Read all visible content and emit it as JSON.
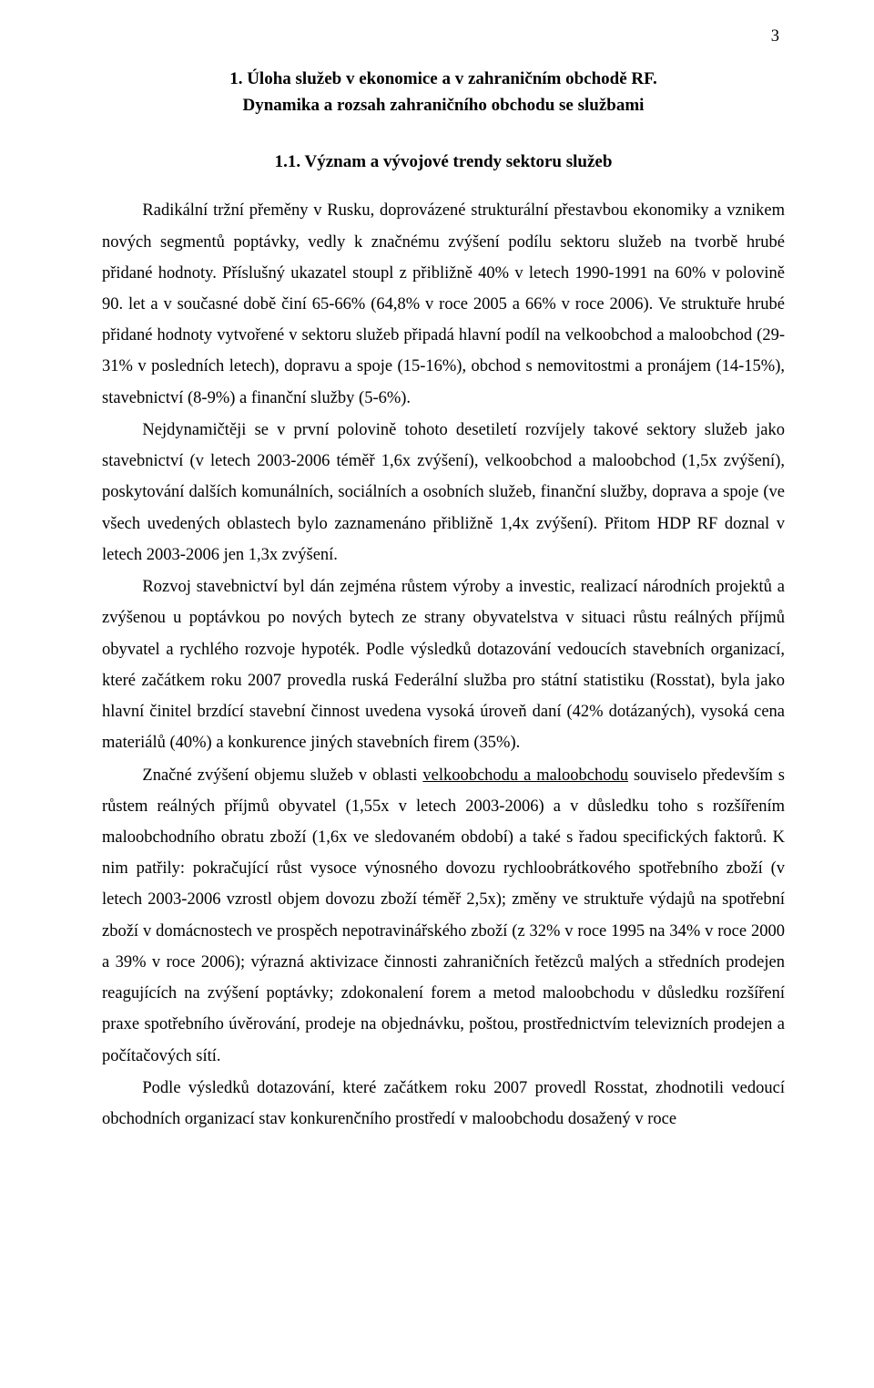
{
  "pageNumber": "3",
  "heading1_line1": "1. Úloha služeb v ekonomice a v zahraničním obchodě RF.",
  "heading1_line2": "Dynamika a rozsah zahraničního obchodu se službami",
  "heading2": "1.1. Význam a vývojové trendy sektoru služeb",
  "p1": "Radikální tržní přeměny v Rusku, doprovázené strukturální přestavbou ekonomiky a vznikem nových segmentů poptávky, vedly k značnému zvýšení podílu sektoru služeb na tvorbě hrubé přidané hodnoty. Příslušný ukazatel stoupl z přibližně 40% v letech 1990-1991 na 60% v polovině 90. let a v současné době činí 65-66% (64,8% v roce 2005 a 66% v roce 2006). Ve struktuře hrubé přidané hodnoty vytvořené v sektoru služeb připadá hlavní podíl na velkoobchod a maloobchod (29-31% v posledních letech), dopravu a spoje (15-16%), obchod s nemovitostmi a pronájem (14-15%), stavebnictví (8-9%) a finanční služby (5-6%).",
  "p2": "Nejdynamičtěji se v první polovině tohoto desetiletí rozvíjely takové sektory služeb jako stavebnictví (v letech 2003-2006 téměř 1,6x zvýšení), velkoobchod a maloobchod (1,5x zvýšení), poskytování dalších komunálních, sociálních a osobních služeb, finanční služby, doprava a spoje (ve všech uvedených oblastech bylo zaznamenáno přibližně 1,4x zvýšení). Přitom HDP RF doznal v letech 2003-2006 jen 1,3x zvýšení.",
  "p3": "Rozvoj stavebnictví byl dán zejména růstem výroby a investic, realizací národních projektů a zvýšenou u poptávkou po nových bytech ze strany obyvatelstva v situaci růstu reálných příjmů obyvatel a rychlého rozvoje hypoték. Podle výsledků dotazování vedoucích stavebních organizací, které začátkem roku 2007 provedla ruská Federální služba pro státní statistiku (Rosstat), byla jako hlavní činitel brzdící stavební činnost uvedena vysoká úroveň daní (42% dotázaných), vysoká cena materiálů (40%) a konkurence jiných stavebních firem (35%).",
  "p4_a": "Značné zvýšení objemu služeb v oblasti ",
  "p4_u": "velkoobchodu a maloobchodu",
  "p4_b": " souviselo především s růstem reálných příjmů obyvatel (1,55x v letech 2003-2006) a v důsledku toho s rozšířením maloobchodního obratu zboží (1,6x ve sledovaném období) a také s řadou specifických faktorů. K nim patřily: pokračující růst vysoce výnosného dovozu rychloobrátkového spotřebního zboží (v letech 2003-2006 vzrostl objem dovozu zboží téměř 2,5x); změny ve struktuře výdajů na spotřební zboží v domácnostech ve prospěch nepotravinářského zboží (z 32% v roce 1995 na 34% v roce 2000 a 39% v roce 2006); výrazná aktivizace činnosti zahraničních řetězců malých a středních prodejen reagujících na zvýšení poptávky; zdokonalení forem a metod maloobchodu v důsledku rozšíření praxe spotřebního úvěrování, prodeje na objednávku, poštou, prostřednictvím televizních prodejen a počítačových sítí.",
  "p5": "Podle výsledků dotazování, které začátkem roku 2007 provedl Rosstat, zhodnotili vedoucí obchodních organizací stav konkurenčního prostředí v maloobchodu dosažený v roce"
}
